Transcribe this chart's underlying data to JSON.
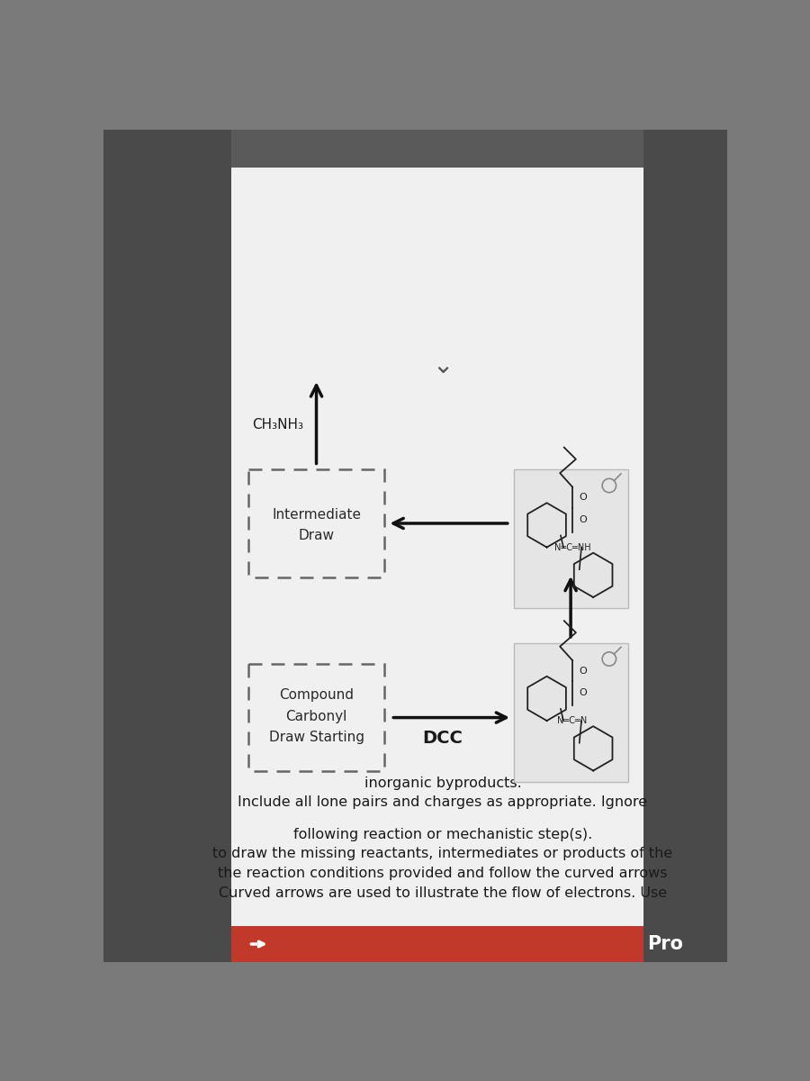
{
  "outer_bg": "#7a7a7a",
  "left_dark_bg": "#4a4a4a",
  "panel_bg": "#e8e8e8",
  "card_bg": "#f0f0f0",
  "header_color": "#c0392b",
  "title_lines": [
    "Curved arrows are used to illustrate the flow of electrons. Use",
    "the reaction conditions provided and follow the curved arrows",
    "to draw the missing reactants, intermediates or products of the",
    "following reaction or mechanistic step(s)."
  ],
  "subtitle_lines": [
    "Include all lone pairs and charges as appropriate. Ignore",
    "inorganic byproducts."
  ],
  "box1_label": [
    "Draw Starting",
    "Carbonyl",
    "Compound"
  ],
  "box2_label": [
    "Draw",
    "Intermediate"
  ],
  "dcc_label": "DCC",
  "ch3nh3_label": "CH₃NH₃",
  "pro_label": "Pro"
}
